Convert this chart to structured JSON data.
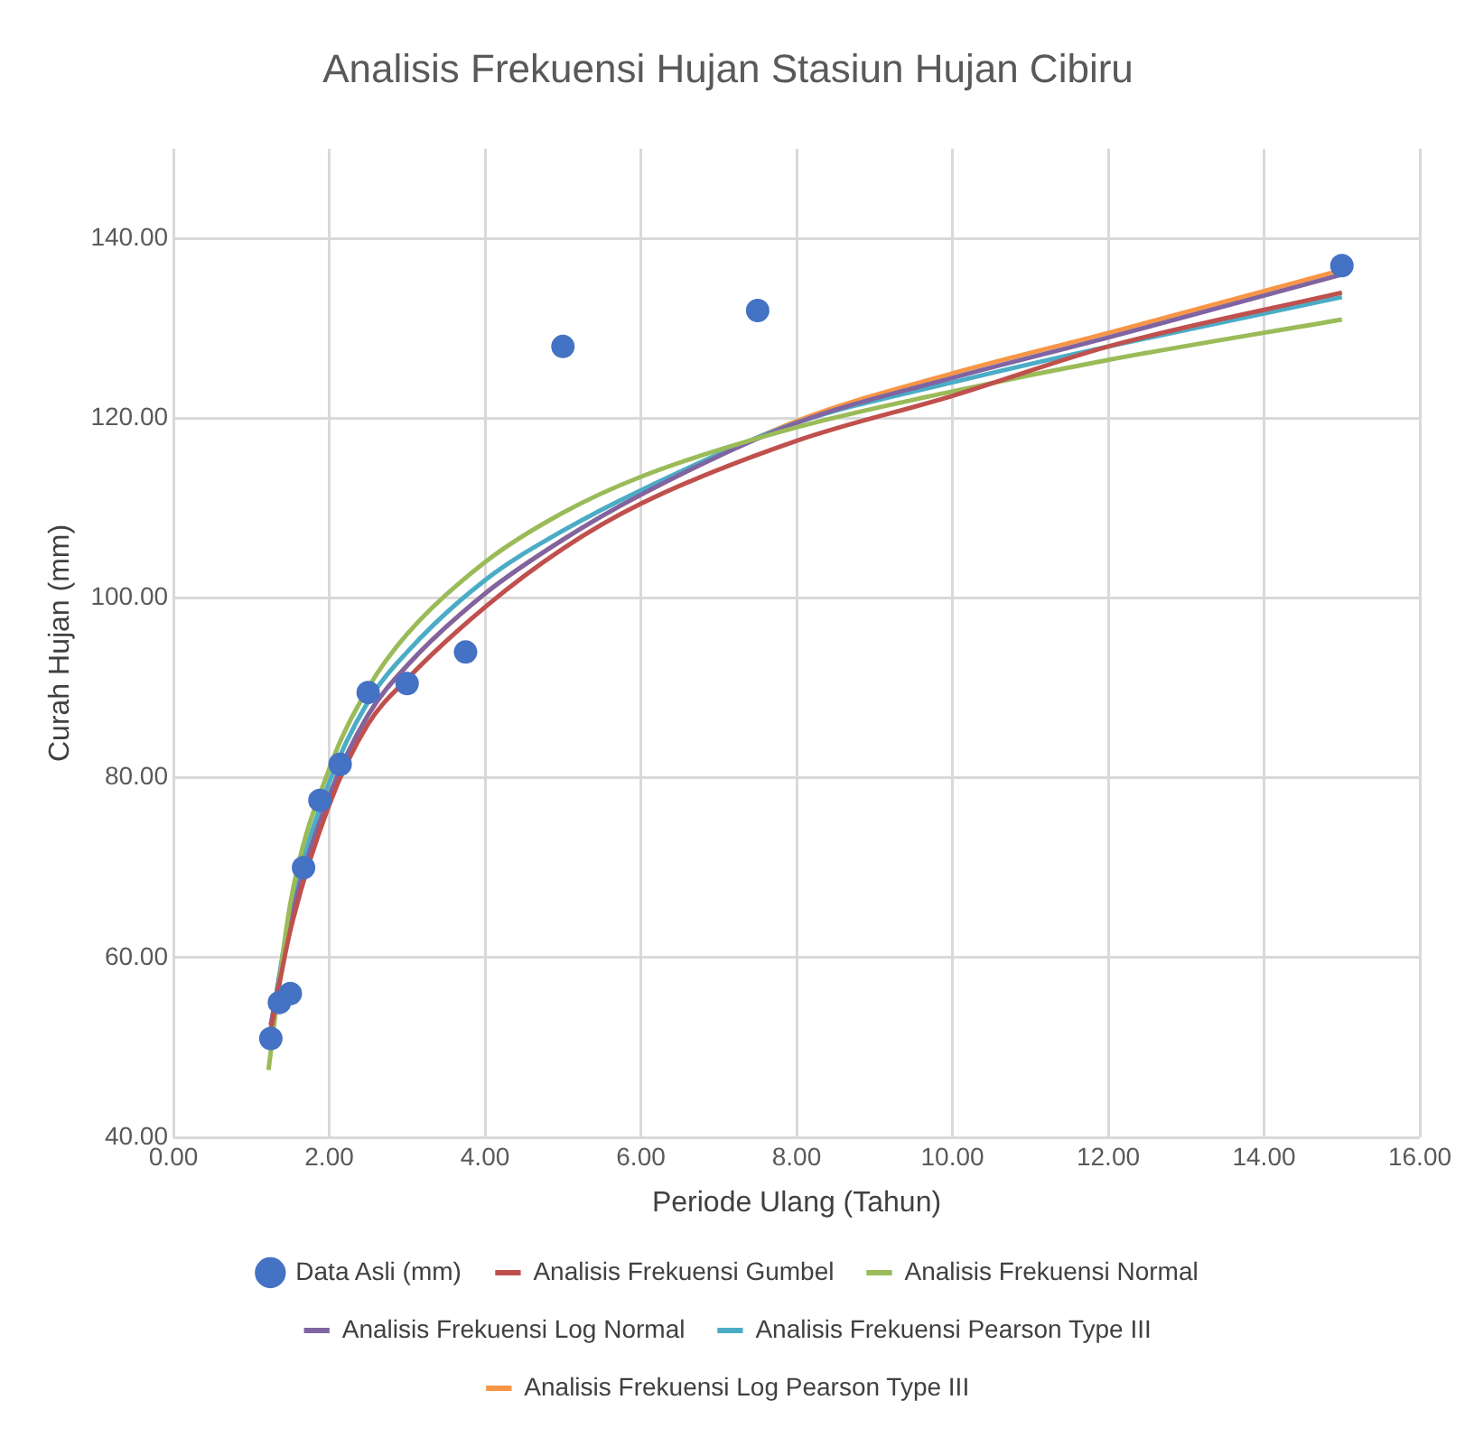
{
  "chart_data": {
    "type": "scatter",
    "title": "Analisis Frekuensi Hujan Stasiun Hujan Cibiru",
    "xlabel": "Periode Ulang (Tahun)",
    "ylabel": "Curah Hujan (mm)",
    "xlim": [
      0,
      16
    ],
    "xticks": [
      {
        "value": 0,
        "label": "0.00"
      },
      {
        "value": 2,
        "label": "2.00"
      },
      {
        "value": 4,
        "label": "4.00"
      },
      {
        "value": 6,
        "label": "6.00"
      },
      {
        "value": 8,
        "label": "8.00"
      },
      {
        "value": 10,
        "label": "10.00"
      },
      {
        "value": 12,
        "label": "12.00"
      },
      {
        "value": 14,
        "label": "14.00"
      },
      {
        "value": 16,
        "label": "16.00"
      }
    ],
    "ylim": [
      40,
      150
    ],
    "yticks": [
      {
        "value": 40,
        "label": "40.00"
      },
      {
        "value": 60,
        "label": "60.00"
      },
      {
        "value": 80,
        "label": "80.00"
      },
      {
        "value": 100,
        "label": "100.00"
      },
      {
        "value": 120,
        "label": "120.00"
      },
      {
        "value": 140,
        "label": "140.00"
      }
    ],
    "grid": true,
    "legend": "bottom",
    "series": [
      {
        "name": "Data Asli (mm)",
        "marker": "circle",
        "color": "#4472c4",
        "x": [
          1.25,
          1.36,
          1.5,
          1.67,
          1.88,
          2.14,
          2.5,
          3,
          3.75,
          5,
          7.5,
          15
        ],
        "values": [
          51,
          55,
          56,
          70,
          77.5,
          81.5,
          89.5,
          90.5,
          94,
          128,
          132,
          137
        ]
      },
      {
        "name": "Analisis Frekuensi Gumbel",
        "type": "line",
        "marker": "none",
        "color": "#c0504d",
        "x": [
          1.25,
          1.5,
          2,
          2.5,
          3,
          4,
          5,
          6,
          8,
          10,
          12,
          15
        ],
        "values": [
          52,
          63,
          77,
          86,
          91,
          99,
          105.5,
          110.5,
          117.5,
          122.5,
          128,
          134
        ]
      },
      {
        "name": "Analisis Frekuensi Normal",
        "type": "line",
        "marker": "none",
        "color": "#9bbb59",
        "x": [
          1.22,
          1.5,
          2,
          2.5,
          3,
          4,
          5,
          6,
          8,
          10,
          12,
          15
        ],
        "values": [
          47.5,
          66,
          81,
          90,
          96,
          104,
          109.5,
          113.5,
          119,
          123,
          126.5,
          131
        ]
      },
      {
        "name": "Analisis Frekuensi Log Normal",
        "type": "line",
        "marker": "none",
        "color": "#8064a2",
        "x": [
          1.25,
          1.5,
          2,
          2.5,
          3,
          4,
          5,
          6,
          8,
          10,
          12,
          15
        ],
        "values": [
          52.5,
          64,
          78,
          87,
          92.5,
          100.5,
          106.5,
          111.5,
          119.5,
          124.5,
          129,
          136
        ]
      },
      {
        "name": "Analisis Frekuensi Pearson Type III",
        "type": "line",
        "marker": "none",
        "color": "#4bacc6",
        "x": [
          1.25,
          1.5,
          2,
          2.5,
          3,
          4,
          5,
          6,
          8,
          10,
          12,
          15
        ],
        "values": [
          52,
          65,
          79.5,
          88.5,
          94,
          102,
          107.5,
          112,
          119.5,
          124,
          128,
          133.5
        ]
      },
      {
        "name": "Analisis Frekuensi Log Pearson Type III",
        "type": "line",
        "marker": "none",
        "color": "#f79646",
        "x": [
          1.25,
          1.5,
          2,
          2.5,
          3,
          4,
          5,
          6,
          8,
          10,
          12,
          15
        ],
        "values": [
          52.5,
          64,
          78,
          87,
          92.5,
          100.5,
          106.5,
          111.5,
          119.7,
          125,
          129.5,
          136.5
        ]
      }
    ]
  }
}
